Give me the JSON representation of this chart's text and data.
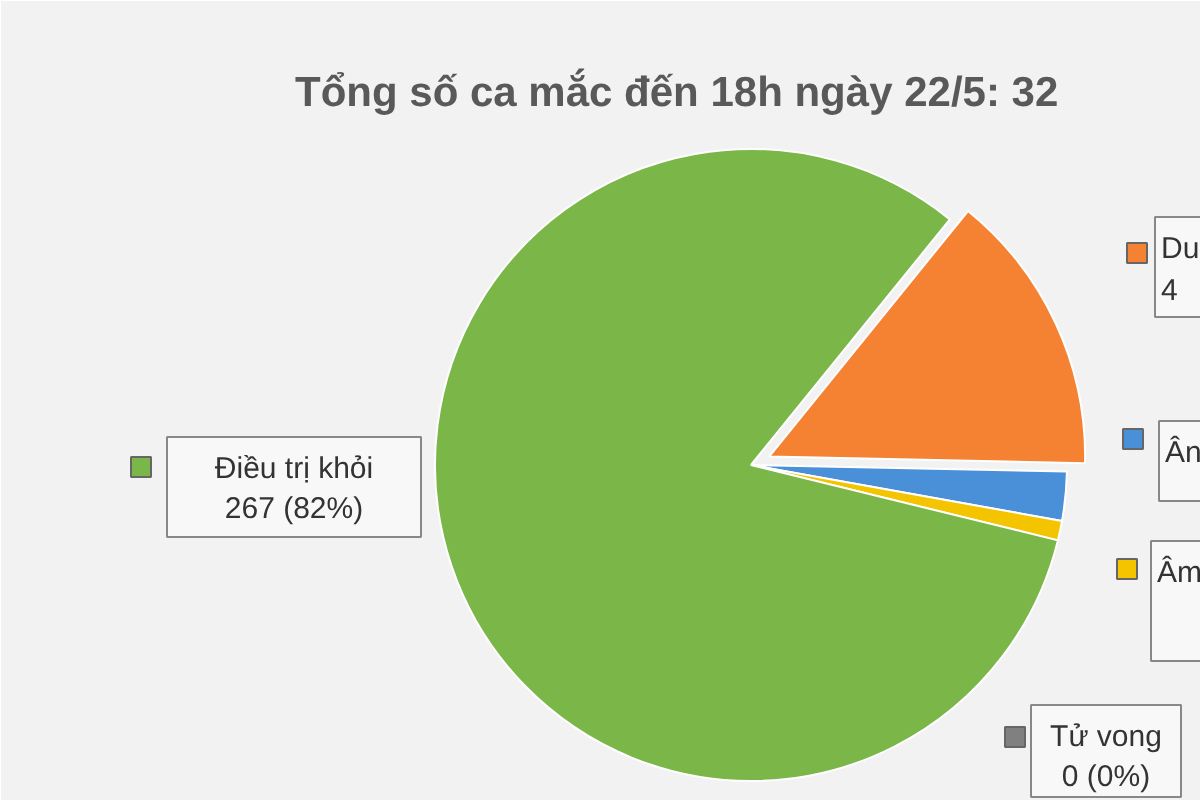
{
  "chart_data": {
    "type": "pie",
    "title": "Tổng số ca mắc đến 18h ngày 22/5: 32",
    "categories": [
      "Du",
      "Ân",
      "Âm",
      "Tử vong",
      "Điều trị khỏi"
    ],
    "values": [
      14.5,
      2.5,
      1,
      0,
      82
    ],
    "colors": [
      "#f58233",
      "#4a90d9",
      "#f5c400",
      "#808080",
      "#7ab648"
    ],
    "value_labels": [
      null,
      null,
      null,
      "0 (0%)",
      "267 (82%)"
    ],
    "annotations": [
      "4"
    ],
    "legend": "bottom left"
  }
}
